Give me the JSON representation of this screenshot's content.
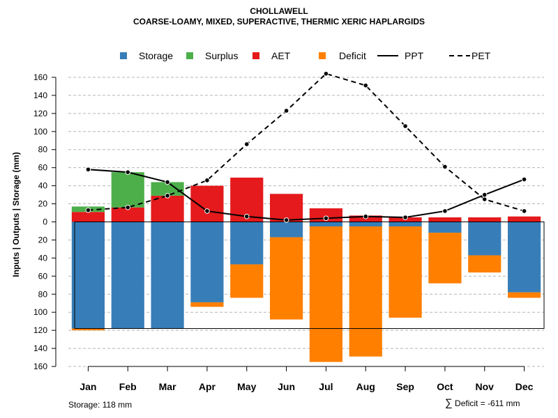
{
  "title": "CHOLLAWELL",
  "subtitle": "COARSE-LOAMY, MIXED, SUPERACTIVE, THERMIC XERIC HAPLARGIDS",
  "footer": {
    "storage": "Storage: 118 mm",
    "deficit_symbol": "∑",
    "deficit": "Deficit = -611 mm"
  },
  "chart_data": {
    "type": "bar",
    "title": "CHOLLAWELL",
    "subtitle": "COARSE-LOAMY, MIXED, SUPERACTIVE, THERMIC XERIC HAPLARGIDS",
    "ylabel": "Inputs | Outputs | Storage    (mm)",
    "xlabel": "",
    "ylim": [
      -160,
      170
    ],
    "yticks": [
      -160,
      -140,
      -120,
      -100,
      -80,
      -60,
      -40,
      -20,
      0,
      20,
      40,
      60,
      80,
      100,
      120,
      140,
      160
    ],
    "ytick_labels": [
      "160",
      "140",
      "120",
      "100",
      "80",
      "60",
      "40",
      "20",
      "0",
      "20",
      "40",
      "60",
      "80",
      "100",
      "120",
      "140",
      "160"
    ],
    "categories": [
      "Jan",
      "Feb",
      "Mar",
      "Apr",
      "May",
      "Jun",
      "Jul",
      "Aug",
      "Sep",
      "Oct",
      "Nov",
      "Dec"
    ],
    "storage_capacity": 118,
    "legend": [
      {
        "label": "Storage",
        "kind": "box",
        "color": "#377EB8"
      },
      {
        "label": "Surplus",
        "kind": "box",
        "color": "#4DAF4A"
      },
      {
        "label": "AET",
        "kind": "box",
        "color": "#E41A1C"
      },
      {
        "label": "Deficit",
        "kind": "box",
        "color": "#FF7F00"
      },
      {
        "label": "PPT",
        "kind": "solid"
      },
      {
        "label": "PET",
        "kind": "dashed"
      }
    ],
    "series": [
      {
        "name": "AET",
        "color": "#E41A1C",
        "values": [
          11,
          16,
          29,
          40,
          49,
          31,
          15,
          7,
          5,
          5,
          5,
          6
        ]
      },
      {
        "name": "Surplus",
        "color": "#4DAF4A",
        "values": [
          6,
          39,
          15,
          0,
          0,
          0,
          0,
          0,
          0,
          0,
          0,
          0
        ]
      },
      {
        "name": "Storage",
        "color": "#377EB8",
        "values": [
          118,
          118,
          118,
          89,
          47,
          17,
          5,
          5,
          5,
          12,
          37,
          78
        ]
      },
      {
        "name": "Deficit",
        "color": "#FF7F00",
        "values": [
          2,
          0,
          0,
          5,
          37,
          91,
          150,
          144,
          101,
          56,
          19,
          6
        ]
      },
      {
        "name": "PPT",
        "style": "solid",
        "values": [
          58,
          55,
          44,
          12,
          6,
          2,
          4,
          6,
          5,
          12,
          30,
          47
        ]
      },
      {
        "name": "PET",
        "style": "dashed",
        "values": [
          13,
          16,
          29,
          46,
          86,
          123,
          164,
          151,
          106,
          61,
          25,
          12
        ]
      }
    ]
  }
}
